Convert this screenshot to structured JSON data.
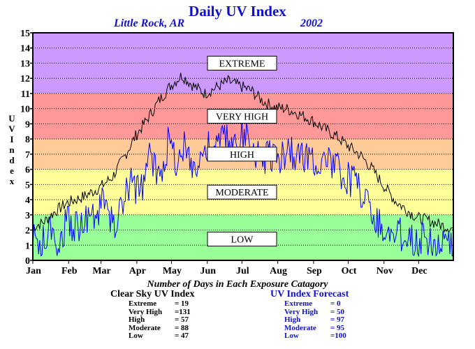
{
  "title": "Daily UV Index",
  "location": "Little Rock, AR",
  "year": "2002",
  "caption": "Number of Days in Each Exposure Catagory",
  "clear_sky": {
    "heading": "Clear Sky UV Index",
    "rows": [
      {
        "label": "Extreme",
        "value": "= 19"
      },
      {
        "label": "Very High",
        "value": "=131"
      },
      {
        "label": "High",
        "value": "= 57"
      },
      {
        "label": "Moderate",
        "value": "= 88"
      },
      {
        "label": "Low",
        "value": "= 47"
      }
    ]
  },
  "forecast": {
    "heading": "UV Index Forecast",
    "rows": [
      {
        "label": "Extreme",
        "value": "= 0"
      },
      {
        "label": "Very High",
        "value": "= 50"
      },
      {
        "label": "High",
        "value": "= 97"
      },
      {
        "label": "Moderate",
        "value": "= 95"
      },
      {
        "label": "Low",
        "value": "=100"
      }
    ]
  },
  "chart_data": {
    "type": "line",
    "title": "Daily UV Index",
    "ylabel": "UV Index",
    "ylim": [
      0,
      15
    ],
    "yticks": [
      "0",
      "1",
      "2",
      "3",
      "4",
      "5",
      "6",
      "7",
      "8",
      "9",
      "10",
      "11",
      "12",
      "13",
      "14",
      "15"
    ],
    "grid": true,
    "x_months": [
      "Jan",
      "Feb",
      "Mar",
      "Apr",
      "May",
      "Jun",
      "Jul",
      "Aug",
      "Sep",
      "Oct",
      "Nov",
      "Dec"
    ],
    "xlim_days": [
      1,
      365
    ],
    "bands": [
      {
        "label": "LOW",
        "from": 0,
        "to": 3,
        "color": "#99ff99"
      },
      {
        "label": "MODERATE",
        "from": 3,
        "to": 6,
        "color": "#ffff99"
      },
      {
        "label": "HIGH",
        "from": 6,
        "to": 8,
        "color": "#ffcc99"
      },
      {
        "label": "VERY HIGH",
        "from": 8,
        "to": 11,
        "color": "#ff9999"
      },
      {
        "label": "EXTREME",
        "from": 11,
        "to": 15,
        "color": "#cc99ff"
      }
    ],
    "series": [
      {
        "name": "Clear Sky UV Index",
        "color": "#000000",
        "x": [
          1,
          10,
          20,
          31,
          45,
          59,
          70,
          80,
          90,
          100,
          110,
          120,
          130,
          140,
          150,
          160,
          170,
          180,
          190,
          200,
          210,
          220,
          230,
          243,
          255,
          265,
          273,
          285,
          295,
          304,
          315,
          325,
          334,
          345,
          355,
          365
        ],
        "y": [
          2.2,
          2.5,
          3.2,
          3.8,
          4.2,
          4.8,
          5.5,
          6.8,
          8.2,
          9.3,
          10.5,
          11.5,
          12.2,
          11.5,
          11,
          11.4,
          11.8,
          11.5,
          11.2,
          10.5,
          10.1,
          10,
          9.7,
          9.2,
          8.6,
          8.1,
          7.6,
          6.9,
          6,
          5,
          3.9,
          3.3,
          2.8,
          2.6,
          2.3,
          2.1
        ]
      },
      {
        "name": "UV Index Forecast",
        "color": "#0000ff",
        "x": [
          1,
          8,
          16,
          24,
          31,
          40,
          48,
          56,
          63,
          70,
          78,
          86,
          94,
          102,
          110,
          118,
          126,
          134,
          142,
          150,
          158,
          166,
          174,
          182,
          190,
          198,
          206,
          214,
          222,
          230,
          238,
          246,
          254,
          262,
          270,
          278,
          286,
          294,
          302,
          310,
          318,
          326,
          334,
          342,
          350,
          358,
          365
        ],
        "y": [
          2,
          1.6,
          2.6,
          1.8,
          3.2,
          2.8,
          3.6,
          3.4,
          4.6,
          2.8,
          4,
          5.8,
          5,
          7.5,
          6.2,
          8.2,
          7.2,
          8.2,
          6.5,
          8,
          7.8,
          8.8,
          8,
          8.8,
          8.4,
          7.2,
          7.8,
          7.2,
          8,
          7.4,
          7.6,
          7,
          7.4,
          6.6,
          6.3,
          5.8,
          5.2,
          3.8,
          3,
          2.1,
          2.4,
          2.2,
          2,
          2.1,
          1.8,
          1.5,
          1.2
        ]
      }
    ]
  }
}
